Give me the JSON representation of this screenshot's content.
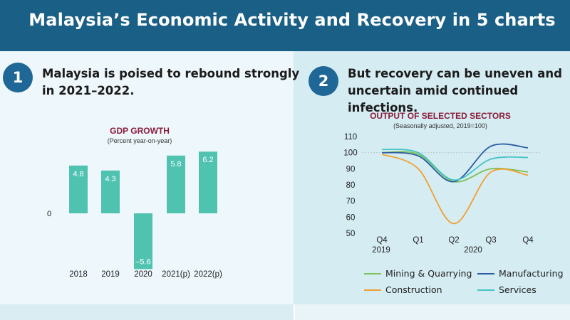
{
  "header": {
    "title": "Malaysia’s Economic Activity and Recovery in 5 charts"
  },
  "panel1": {
    "number": "1",
    "headline_lines": [
      "Malaysia is poised to rebound strongly",
      "in 2021–2022."
    ]
  },
  "panel2": {
    "number": "2",
    "headline_lines": [
      "But recovery can be uneven and",
      "uncertain amid continued infections."
    ]
  },
  "colors": {
    "header_bg": "#1a5f86",
    "badge": "#1f6796",
    "bar": "#4fc3b0",
    "chart_title": "#8b1c3b",
    "mining": "#7dc25a",
    "manufacturing": "#2b5ca3",
    "construction": "#f0a030",
    "services": "#45c4c4"
  },
  "chart_data": [
    {
      "type": "bar",
      "title": "GDP GROWTH",
      "subtitle": "(Percent year-on-year)",
      "categories": [
        "2018",
        "2019",
        "2020",
        "2021(p)",
        "2022(p)"
      ],
      "values": [
        4.8,
        4.3,
        -5.6,
        5.8,
        6.2
      ],
      "value_labels": [
        "4.8",
        "4.3",
        "–5.6",
        "5.8",
        "6.2"
      ],
      "y_ticks": [
        {
          "value": 0,
          "label": "0"
        }
      ],
      "ylim": [
        -5.6,
        6.2
      ],
      "grid": false
    },
    {
      "type": "line",
      "title": "OUTPUT OF SELECTED SECTORS",
      "subtitle": "(Seasonally adjusted, 2019=100)",
      "x": [
        "Q4 2019",
        "Q1 2020",
        "Q2 2020",
        "Q3 2020",
        "Q4 2020"
      ],
      "x_tick_labels": [
        "Q4",
        "Q1",
        "Q2",
        "Q3",
        "Q4"
      ],
      "x_year_labels": [
        {
          "label": "2019",
          "at": 0
        },
        {
          "label": "2020",
          "at": 2.5
        }
      ],
      "ylim": [
        50,
        110
      ],
      "y_ticks": [
        110,
        100,
        90,
        80,
        70,
        60,
        50
      ],
      "reference_line": 100,
      "legend_position": "bottom",
      "series": [
        {
          "name": "Mining & Quarrying",
          "color": "#7dc25a",
          "values": [
            100,
            99,
            82,
            90,
            88
          ]
        },
        {
          "name": "Manufacturing",
          "color": "#2b5ca3",
          "values": [
            100,
            98,
            82,
            104,
            103
          ]
        },
        {
          "name": "Construction",
          "color": "#f0a030",
          "values": [
            99,
            90,
            56,
            88,
            86
          ]
        },
        {
          "name": "Services",
          "color": "#45c4c4",
          "values": [
            102,
            100,
            83,
            96,
            97
          ]
        }
      ]
    }
  ]
}
